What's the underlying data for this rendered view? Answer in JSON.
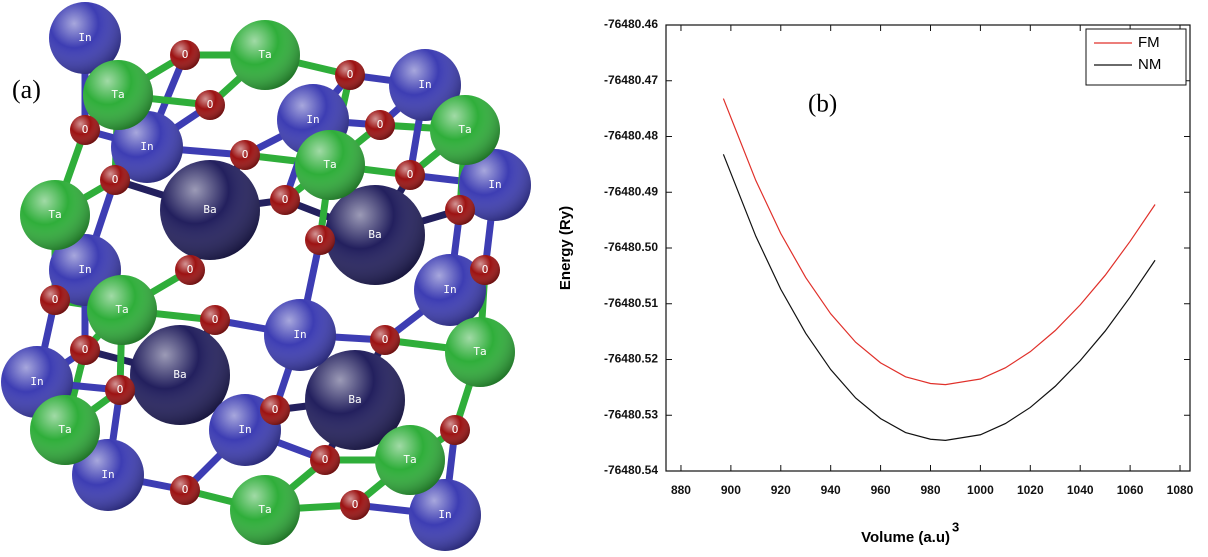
{
  "panel_a": {
    "label": "(a)",
    "atom_groups": [
      {
        "label": "In",
        "color": "#3d3db3"
      },
      {
        "label": "Ta",
        "color": "#2fae3a"
      },
      {
        "label": "O",
        "color": "#9c1212"
      },
      {
        "label": "Ba",
        "color": "#23205e"
      }
    ]
  },
  "chart_data": {
    "type": "line",
    "label": "(b)",
    "xlabel": "Volume (a.u)",
    "xlabel_sup": "3",
    "ylabel": "Energy (Ry)",
    "x": [
      897,
      910,
      920,
      930,
      940,
      950,
      960,
      970,
      980,
      986,
      1000,
      1010,
      1020,
      1030,
      1040,
      1050,
      1060,
      1070
    ],
    "series": [
      {
        "name": "FM",
        "color": "#e0302a",
        "values": [
          -76480.4732,
          -76480.4879,
          -76480.4974,
          -76480.5053,
          -76480.5118,
          -76480.5169,
          -76480.5206,
          -76480.5231,
          -76480.5243,
          -76480.5245,
          -76480.5235,
          -76480.5215,
          -76480.5186,
          -76480.5148,
          -76480.5102,
          -76480.5049,
          -76480.4988,
          -76480.4922
        ]
      },
      {
        "name": "NM",
        "color": "#111111",
        "values": [
          -76480.4832,
          -76480.4979,
          -76480.5074,
          -76480.5153,
          -76480.5218,
          -76480.5269,
          -76480.5306,
          -76480.5331,
          -76480.5343,
          -76480.5345,
          -76480.5335,
          -76480.5315,
          -76480.5286,
          -76480.5248,
          -76480.5202,
          -76480.5149,
          -76480.5088,
          -76480.5022
        ]
      }
    ],
    "xlim": [
      874,
      1084
    ],
    "xticks": [
      880,
      900,
      920,
      940,
      960,
      980,
      1000,
      1020,
      1040,
      1060,
      1080
    ],
    "ylim": [
      -76480.54,
      -76480.46
    ],
    "yticks": [
      -76480.54,
      -76480.53,
      -76480.52,
      -76480.51,
      {
        "value": -76480.5,
        "label": "-76480.50"
      },
      -76480.49,
      -76480.48,
      -76480.47,
      -76480.46
    ],
    "legend": "top-right"
  }
}
